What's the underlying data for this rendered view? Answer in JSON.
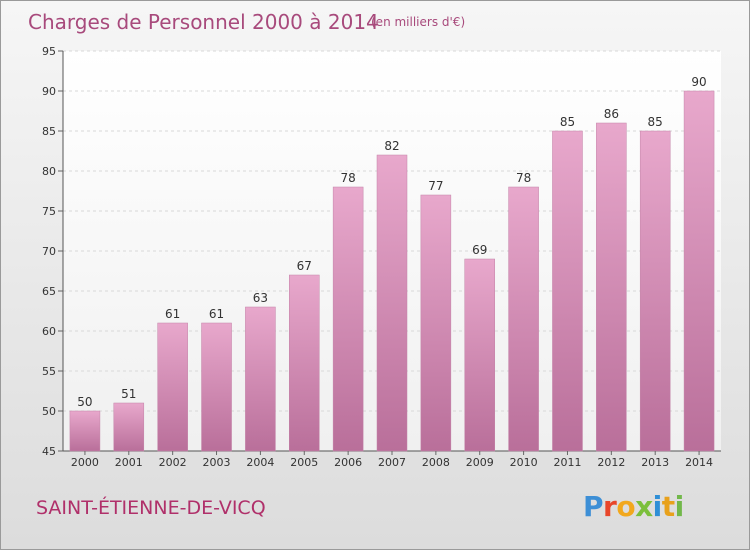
{
  "header": {
    "title": "Charges de Personnel 2000 à 2014",
    "unit": "(en milliers d'€)"
  },
  "footer": {
    "commune": "SAINT-ÉTIENNE-DE-VICQ",
    "logo": "Proxiti",
    "logo_colors": [
      "#3d8fd6",
      "#e8462a",
      "#f2a81d",
      "#7bbf3b",
      "#2f8fd6",
      "#e8a11c",
      "#72b84a"
    ]
  },
  "colors": {
    "bar_top": "#e8a8cc",
    "bar_bottom": "#b96f9a",
    "accent": "#a84a7c"
  },
  "chart_data": {
    "type": "bar",
    "title": "Charges de Personnel 2000 à 2014",
    "subtitle": "(en milliers d'€)",
    "xlabel": "",
    "ylabel": "",
    "categories": [
      "2000",
      "2001",
      "2002",
      "2003",
      "2004",
      "2005",
      "2006",
      "2007",
      "2008",
      "2009",
      "2010",
      "2011",
      "2012",
      "2013",
      "2014"
    ],
    "values": [
      50,
      51,
      61,
      61,
      63,
      67,
      78,
      82,
      77,
      69,
      78,
      85,
      86,
      85,
      90
    ],
    "ylim": [
      45,
      95
    ],
    "yticks": [
      45,
      50,
      55,
      60,
      65,
      70,
      75,
      80,
      85,
      90,
      95
    ],
    "grid": true,
    "data_labels": true
  }
}
